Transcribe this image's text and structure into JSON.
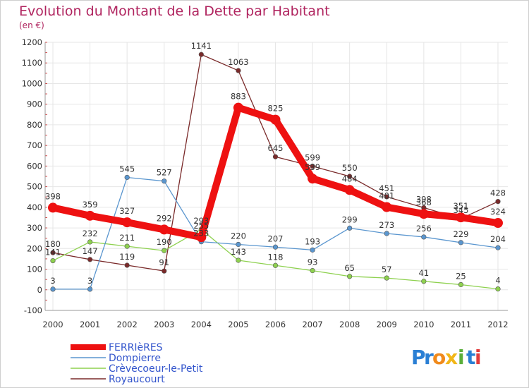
{
  "chart_data": {
    "type": "line",
    "title": "Evolution du Montant de la Dette par Habitant",
    "subtitle": "(en €)",
    "x": [
      "2000",
      "2001",
      "2002",
      "2003",
      "2004",
      "2005",
      "2006",
      "2007",
      "2008",
      "2009",
      "2010",
      "2011",
      "2012"
    ],
    "ylim": [
      -100,
      1200
    ],
    "yticks": [
      "-100",
      "0",
      "100",
      "200",
      "300",
      "400",
      "500",
      "600",
      "700",
      "800",
      "900",
      "1000",
      "1100",
      "1200"
    ],
    "grid": true,
    "legend": "bottom-left",
    "series": [
      {
        "name": "Royaucourt",
        "color": "#7a2a2a",
        "values": [
          180,
          147,
          119,
          91,
          1141,
          1063,
          645,
          599,
          550,
          451,
          398,
          345,
          428
        ]
      },
      {
        "name": "Crèvecoeur-le-Petit",
        "color": "#8ed14f",
        "values": [
          141,
          232,
          211,
          190,
          293,
          143,
          118,
          93,
          65,
          57,
          41,
          25,
          4
        ]
      },
      {
        "name": "Dompierre",
        "color": "#5a96cf",
        "values": [
          3,
          3,
          545,
          527,
          233,
          220,
          207,
          193,
          299,
          273,
          256,
          229,
          204
        ]
      },
      {
        "name": "FERRIèRES",
        "color": "#ee1111",
        "values": [
          398,
          359,
          327,
          292,
          255,
          883,
          825,
          539,
          484,
          401,
          368,
          351,
          324
        ]
      }
    ]
  },
  "logo": {
    "text": "Proxiti",
    "letters": [
      "P",
      "r",
      "o",
      "x",
      "i",
      "t",
      "i"
    ],
    "colors": [
      "#2a7fd4",
      "#2a7fd4",
      "#f08a1c",
      "#f2b617",
      "#5aae3a",
      "#2a7fd4",
      "#e23b3b"
    ]
  }
}
